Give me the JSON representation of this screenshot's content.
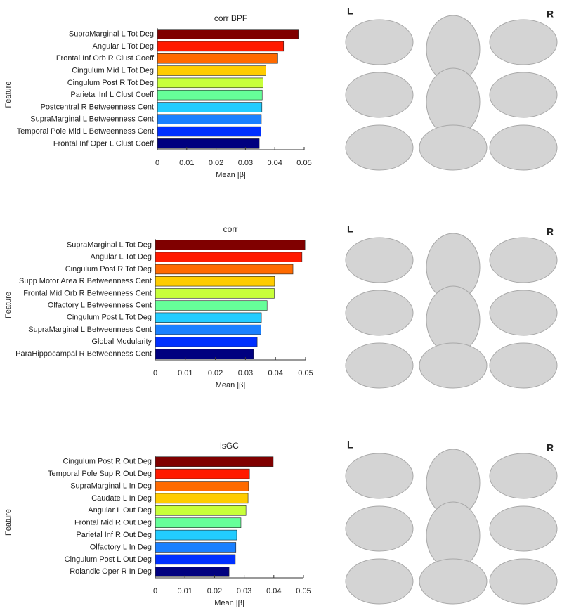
{
  "chart_data": [
    {
      "type": "barh",
      "title": "corr BPF",
      "xlabel": "Mean |β|",
      "ylabel": "Feature",
      "categories": [
        "SupraMarginal L Tot Deg",
        "Angular L Tot Deg",
        "Frontal Inf Orb R Clust Coeff",
        "Cingulum Mid L Tot Deg",
        "Cingulum Post R Tot Deg",
        "Parietal Inf L Clust Coeff",
        "Postcentral R Betweenness Cent",
        "SupraMarginal L Betweenness Cent",
        "Temporal Pole Mid L Betweenness Cent",
        "Frontal Inf Oper L Clust Coeff"
      ],
      "values": [
        0.048,
        0.043,
        0.041,
        0.037,
        0.036,
        0.0357,
        0.0356,
        0.0354,
        0.0353,
        0.0347
      ],
      "colors": [
        "#800000",
        "#ff1a00",
        "#ff6a00",
        "#ffcc00",
        "#c8ff3a",
        "#66ff99",
        "#22ccff",
        "#1a80ff",
        "#0030ff",
        "#00007f"
      ],
      "xlim": [
        0,
        0.05
      ],
      "xticks": [
        0,
        0.01,
        0.02,
        0.03,
        0.04,
        0.05
      ]
    },
    {
      "type": "barh",
      "title": "corr",
      "xlabel": "Mean |β|",
      "ylabel": "Feature",
      "categories": [
        "SupraMarginal L Tot Deg",
        "Angular L Tot Deg",
        "Cingulum Post R Tot Deg",
        "Supp Motor Area R Betweenness Cent",
        "Frontal Mid Orb R Betweenness Cent",
        "Olfactory L Betweenness Cent",
        "Cingulum Post L Tot Deg",
        "SupraMarginal L Betweenness Cent",
        "Global Modularity",
        "ParaHippocampal R Betweenness Cent"
      ],
      "values": [
        0.0498,
        0.0488,
        0.0458,
        0.0397,
        0.0396,
        0.0372,
        0.0353,
        0.0352,
        0.0339,
        0.0327
      ],
      "colors": [
        "#800000",
        "#ff1a00",
        "#ff6a00",
        "#ffcc00",
        "#c8ff3a",
        "#66ff99",
        "#22ccff",
        "#1a80ff",
        "#0030ff",
        "#00007f"
      ],
      "xlim": [
        0,
        0.05
      ],
      "xticks": [
        0,
        0.01,
        0.02,
        0.03,
        0.04,
        0.05
      ]
    },
    {
      "type": "barh",
      "title": "lsGC",
      "xlabel": "Mean |β|",
      "ylabel": "Feature",
      "categories": [
        "Cingulum Post R Out Deg",
        "Temporal Pole Sup R Out Deg",
        "SupraMarginal L In Deg",
        "Caudate L In Deg",
        "Angular L Out Deg",
        "Frontal Mid R Out Deg",
        "Parietal Inf R Out Deg",
        "Olfactory L In Deg",
        "Cingulum Post L Out Deg",
        "Rolandic Oper R In Deg"
      ],
      "values": [
        0.0398,
        0.0318,
        0.0315,
        0.0313,
        0.0306,
        0.0289,
        0.0275,
        0.0272,
        0.027,
        0.0249
      ],
      "colors": [
        "#800000",
        "#ff1a00",
        "#ff6a00",
        "#ffcc00",
        "#c8ff3a",
        "#66ff99",
        "#22ccff",
        "#1a80ff",
        "#0030ff",
        "#00007f"
      ],
      "xlim": [
        0,
        0.05
      ],
      "xticks": [
        0,
        0.01,
        0.02,
        0.03,
        0.04,
        0.05
      ]
    }
  ],
  "brain_panels": [
    {
      "left": "L",
      "right": "R"
    },
    {
      "left": "L",
      "right": "R"
    },
    {
      "left": "L",
      "right": "R"
    }
  ]
}
